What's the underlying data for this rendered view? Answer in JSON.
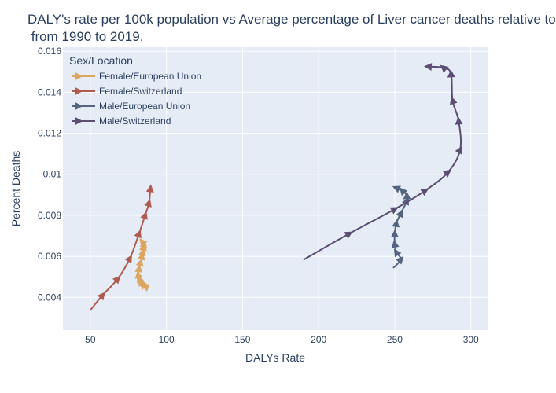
{
  "chart_data": {
    "type": "line",
    "title_line1": "DALY's rate per 100k population vs Average percentage of Liver cancer deaths relative to",
    "title_line2": " from 1990 to 2019.",
    "xlabel": "DALYs Rate",
    "ylabel": "Percent Deaths",
    "xlim": [
      32,
      311
    ],
    "ylim": [
      0.0024,
      0.0162
    ],
    "x_ticks": [
      50,
      100,
      150,
      200,
      250,
      300
    ],
    "y_ticks": [
      0.004,
      0.006,
      0.008,
      0.01,
      0.012,
      0.014,
      0.016
    ],
    "x_tick_labels": [
      "50",
      "100",
      "150",
      "200",
      "250",
      "300"
    ],
    "y_tick_labels": [
      "0.004",
      "0.006",
      "0.008",
      "0.01",
      "0.012",
      "0.014",
      "0.016"
    ],
    "grid": true,
    "legend_title": "Sex/Location",
    "legend_position": "top-left",
    "series": [
      {
        "name": "Female/European Union",
        "color": "#daa662",
        "points": [
          [
            88,
            0.00447
          ],
          [
            86,
            0.00452
          ],
          [
            84,
            0.00462
          ],
          [
            83,
            0.00475
          ],
          [
            82,
            0.0049
          ],
          [
            81.5,
            0.0051
          ],
          [
            82,
            0.0054
          ],
          [
            83,
            0.0057
          ],
          [
            84,
            0.006
          ],
          [
            84.5,
            0.0062
          ],
          [
            85,
            0.00645
          ],
          [
            85.5,
            0.00658
          ],
          [
            84,
            0.00672
          ]
        ]
      },
      {
        "name": "Female/Switzerland",
        "color": "#b05b4f",
        "points": [
          [
            50,
            0.00337
          ],
          [
            58,
            0.0041
          ],
          [
            68,
            0.0049
          ],
          [
            76,
            0.0059
          ],
          [
            82,
            0.0071
          ],
          [
            86,
            0.008
          ],
          [
            88.5,
            0.0086
          ],
          [
            89.5,
            0.0093
          ]
        ]
      },
      {
        "name": "Male/European Union",
        "color": "#55647f",
        "points": [
          [
            249,
            0.00543
          ],
          [
            254,
            0.00585
          ],
          [
            251,
            0.0062
          ],
          [
            250,
            0.0066
          ],
          [
            250,
            0.0071
          ],
          [
            251,
            0.0076
          ],
          [
            254,
            0.0081
          ],
          [
            258,
            0.0087
          ],
          [
            258,
            0.00895
          ],
          [
            255,
            0.0092
          ],
          [
            251,
            0.00933
          ]
        ]
      },
      {
        "name": "Male/Switzerland",
        "color": "#5c4d72",
        "points": [
          [
            190,
            0.00583
          ],
          [
            220,
            0.0071
          ],
          [
            250,
            0.0083
          ],
          [
            270,
            0.0092
          ],
          [
            285,
            0.0101
          ],
          [
            293,
            0.0112
          ],
          [
            292,
            0.0126
          ],
          [
            288,
            0.0136
          ],
          [
            287,
            0.0149
          ],
          [
            282,
            0.0152
          ],
          [
            272,
            0.01525
          ]
        ]
      }
    ]
  }
}
